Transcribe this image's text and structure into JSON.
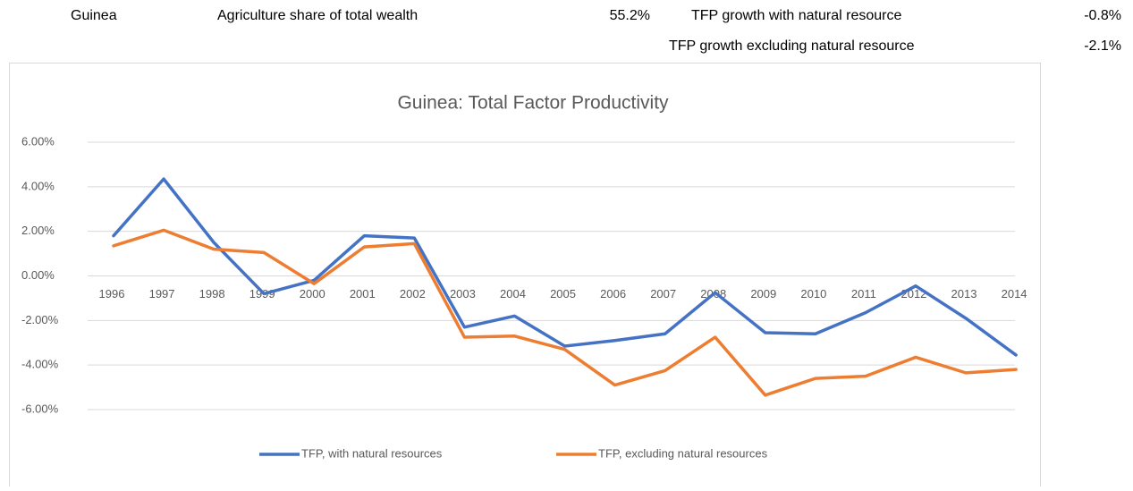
{
  "cells": {
    "country": "Guinea",
    "agri_label": "Agriculture share of total wealth",
    "agri_value": "55.2%",
    "with_label": "TFP growth with natural resource",
    "with_value": "-0.8%",
    "excl_label": "TFP growth excluding natural resource",
    "excl_value": "-2.1%"
  },
  "chart_data": {
    "type": "line",
    "title": "Guinea: Total Factor Productivity",
    "categories": [
      "1996",
      "1997",
      "1998",
      "1999",
      "2000",
      "2001",
      "2002",
      "2003",
      "2004",
      "2005",
      "2006",
      "2007",
      "2008",
      "2009",
      "2010",
      "2011",
      "2012",
      "2013",
      "2014"
    ],
    "series": [
      {
        "name": "TFP, with natural resources",
        "color": "#4472c4",
        "values": [
          1.8,
          4.35,
          1.5,
          -0.8,
          -0.2,
          1.8,
          1.7,
          -2.3,
          -1.8,
          -3.15,
          -2.9,
          -2.6,
          -0.75,
          -2.55,
          -2.6,
          -1.65,
          -0.45,
          -1.9,
          -3.55
        ]
      },
      {
        "name": "TFP, excluding natural resources",
        "color": "#ed7d31",
        "values": [
          1.35,
          2.05,
          1.2,
          1.05,
          -0.35,
          1.3,
          1.45,
          -2.75,
          -2.7,
          -3.3,
          -4.9,
          -4.25,
          -2.75,
          -5.35,
          -4.6,
          -4.5,
          -3.65,
          -4.35,
          -4.2
        ]
      }
    ],
    "ylim": [
      -6,
      6
    ],
    "yticks": [
      {
        "value": -6,
        "label": "-6.00%"
      },
      {
        "value": -4,
        "label": "-4.00%"
      },
      {
        "value": -2,
        "label": "-2.00%"
      },
      {
        "value": 0,
        "label": "0.00%"
      },
      {
        "value": 2,
        "label": "2.00%"
      },
      {
        "value": 4,
        "label": "4.00%"
      },
      {
        "value": 6,
        "label": "6.00%"
      }
    ],
    "grid": true,
    "legend": "bottom"
  }
}
